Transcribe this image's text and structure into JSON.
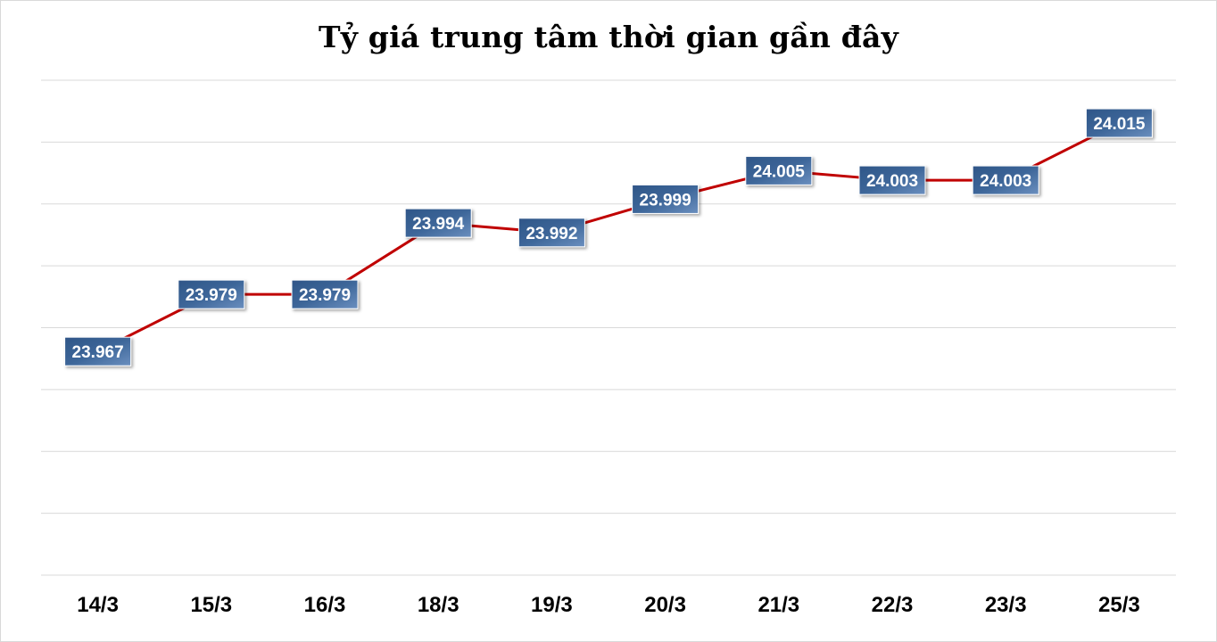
{
  "chart_data": {
    "type": "line",
    "title": "Tỷ giá trung tâm thời gian gần đây",
    "categories": [
      "14/3",
      "15/3",
      "16/3",
      "18/3",
      "19/3",
      "20/3",
      "21/3",
      "22/3",
      "23/3",
      "25/3"
    ],
    "series": [
      {
        "values": [
          23967,
          23979,
          23979,
          23994,
          23992,
          23999,
          24005,
          24003,
          24003,
          24015
        ],
        "labels": [
          "23.967",
          "23.979",
          "23.979",
          "23.994",
          "23.992",
          "23.999",
          "24.005",
          "24.003",
          "24.003",
          "24.015"
        ],
        "color": "#c00000"
      }
    ],
    "ylim": [
      23920,
      24024
    ],
    "grid": true,
    "gridlines": 9,
    "label_box_color": "#3d6699",
    "xlabel": "",
    "ylabel": ""
  }
}
